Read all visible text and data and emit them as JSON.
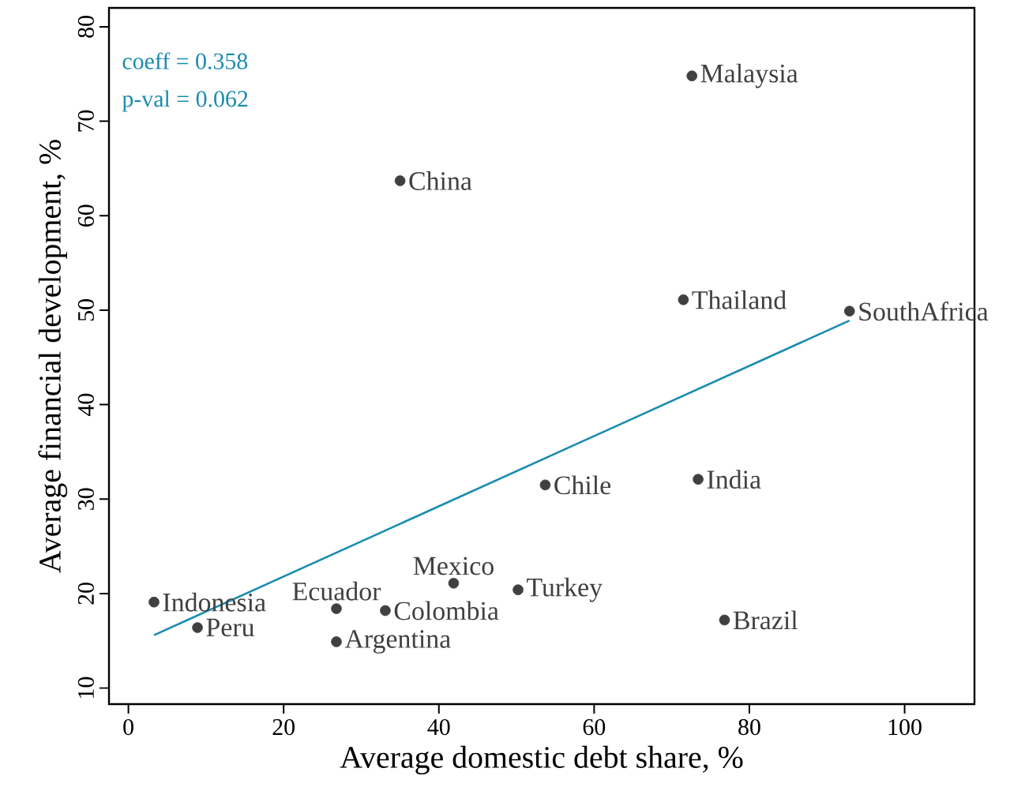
{
  "chart_data": {
    "type": "scatter",
    "xlabel": "Average domestic debt share, %",
    "ylabel": "Average financial development, %",
    "xlim": [
      -2.5,
      109
    ],
    "ylim": [
      8.3,
      82
    ],
    "xticks": [
      0,
      20,
      40,
      60,
      80,
      100
    ],
    "yticks": [
      10,
      20,
      30,
      40,
      50,
      60,
      70,
      80
    ],
    "grid": false,
    "legend": false,
    "series": [
      {
        "color": "#404040",
        "marker": "circle",
        "x": [
          72.6,
          35.0,
          71.5,
          92.9,
          53.7,
          73.4,
          41.9,
          50.2,
          3.3,
          8.9,
          26.8,
          33.1,
          26.8,
          76.8
        ],
        "values": [
          74.8,
          63.7,
          51.1,
          49.9,
          31.5,
          32.1,
          21.1,
          20.4,
          19.1,
          16.4,
          18.4,
          18.2,
          14.9,
          17.2
        ]
      },
      {
        "type": "line",
        "color": "#1a8cb0",
        "marker": "none",
        "x": [
          3.3,
          92.9
        ],
        "values": [
          15.6,
          48.9
        ]
      }
    ],
    "annotations": [
      "coeff = 0.358",
      "p-val = 0.062",
      {
        "text": "Malaysia",
        "x": 72.6,
        "y": 74.8
      },
      {
        "text": "China",
        "x": 35.0,
        "y": 63.7
      },
      {
        "text": "Thailand",
        "x": 71.5,
        "y": 51.1
      },
      {
        "text": "SouthAfrica",
        "x": 92.9,
        "y": 49.9
      },
      {
        "text": "Chile",
        "x": 53.7,
        "y": 31.5
      },
      {
        "text": "India",
        "x": 73.4,
        "y": 32.1
      },
      {
        "text": "Mexico",
        "x": 41.9,
        "y": 21.1
      },
      {
        "text": "Turkey",
        "x": 50.2,
        "y": 20.4
      },
      {
        "text": "Indonesia",
        "x": 3.3,
        "y": 19.1
      },
      {
        "text": "Peru",
        "x": 8.9,
        "y": 16.4
      },
      {
        "text": "Ecuador",
        "x": 26.8,
        "y": 18.4
      },
      {
        "text": "Colombia",
        "x": 33.1,
        "y": 18.2
      },
      {
        "text": "Argentina",
        "x": 26.8,
        "y": 14.9
      },
      {
        "text": "Brazil",
        "x": 76.8,
        "y": 17.2
      }
    ]
  }
}
